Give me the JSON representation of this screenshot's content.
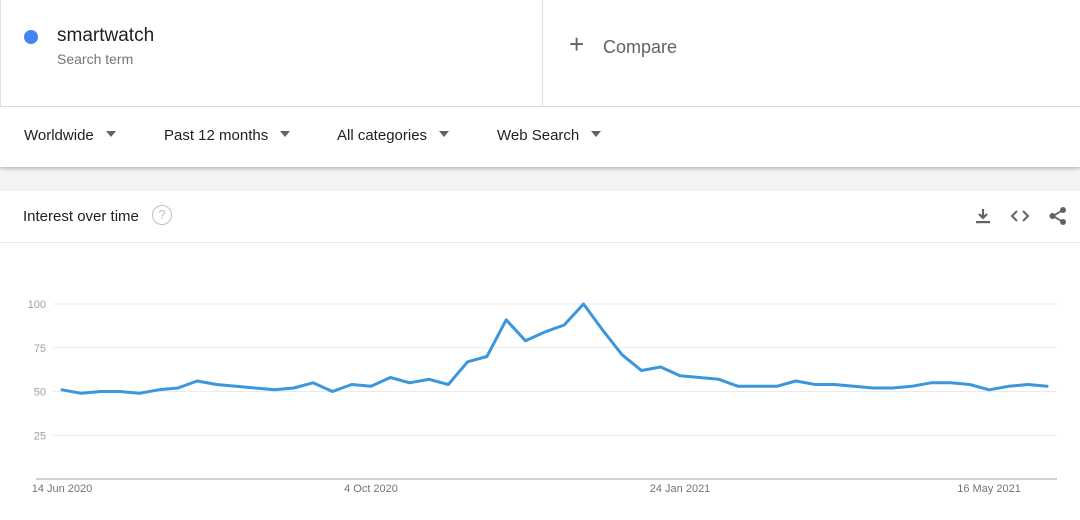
{
  "search_term": {
    "name": "smartwatch",
    "subtitle": "Search term",
    "color": "#4285f4"
  },
  "compare": {
    "icon": "plus-icon",
    "label": "Compare"
  },
  "filters": [
    {
      "label": "Worldwide"
    },
    {
      "label": "Past 12 months"
    },
    {
      "label": "All categories"
    },
    {
      "label": "Web Search"
    }
  ],
  "card": {
    "title": "Interest over time",
    "help_icon": "question-mark-icon",
    "actions": [
      "download-icon",
      "embed-icon",
      "share-icon"
    ]
  },
  "chart_data": {
    "type": "line",
    "title": "",
    "xlabel": "",
    "ylabel": "",
    "ylim": [
      0,
      100
    ],
    "yticks": [
      25,
      50,
      75,
      100
    ],
    "x_tick_labels": [
      {
        "label": "14 Jun 2020",
        "index": 0
      },
      {
        "label": "4 Oct 2020",
        "index": 16
      },
      {
        "label": "24 Jan 2021",
        "index": 32
      },
      {
        "label": "16 May 2021",
        "index": 48
      }
    ],
    "grid": true,
    "line_color": "#3b96db",
    "series": [
      {
        "values": [
          51,
          49,
          50,
          50,
          49,
          51,
          52,
          56,
          54,
          53,
          52,
          51,
          52,
          55,
          50,
          54,
          53,
          58,
          55,
          57,
          54,
          67,
          70,
          91,
          79,
          84,
          88,
          100,
          85,
          71,
          62,
          64,
          59,
          58,
          57,
          53,
          53,
          53,
          56,
          54,
          54,
          53,
          52,
          52,
          53,
          55,
          55,
          54,
          51,
          53,
          54,
          53
        ]
      }
    ]
  }
}
